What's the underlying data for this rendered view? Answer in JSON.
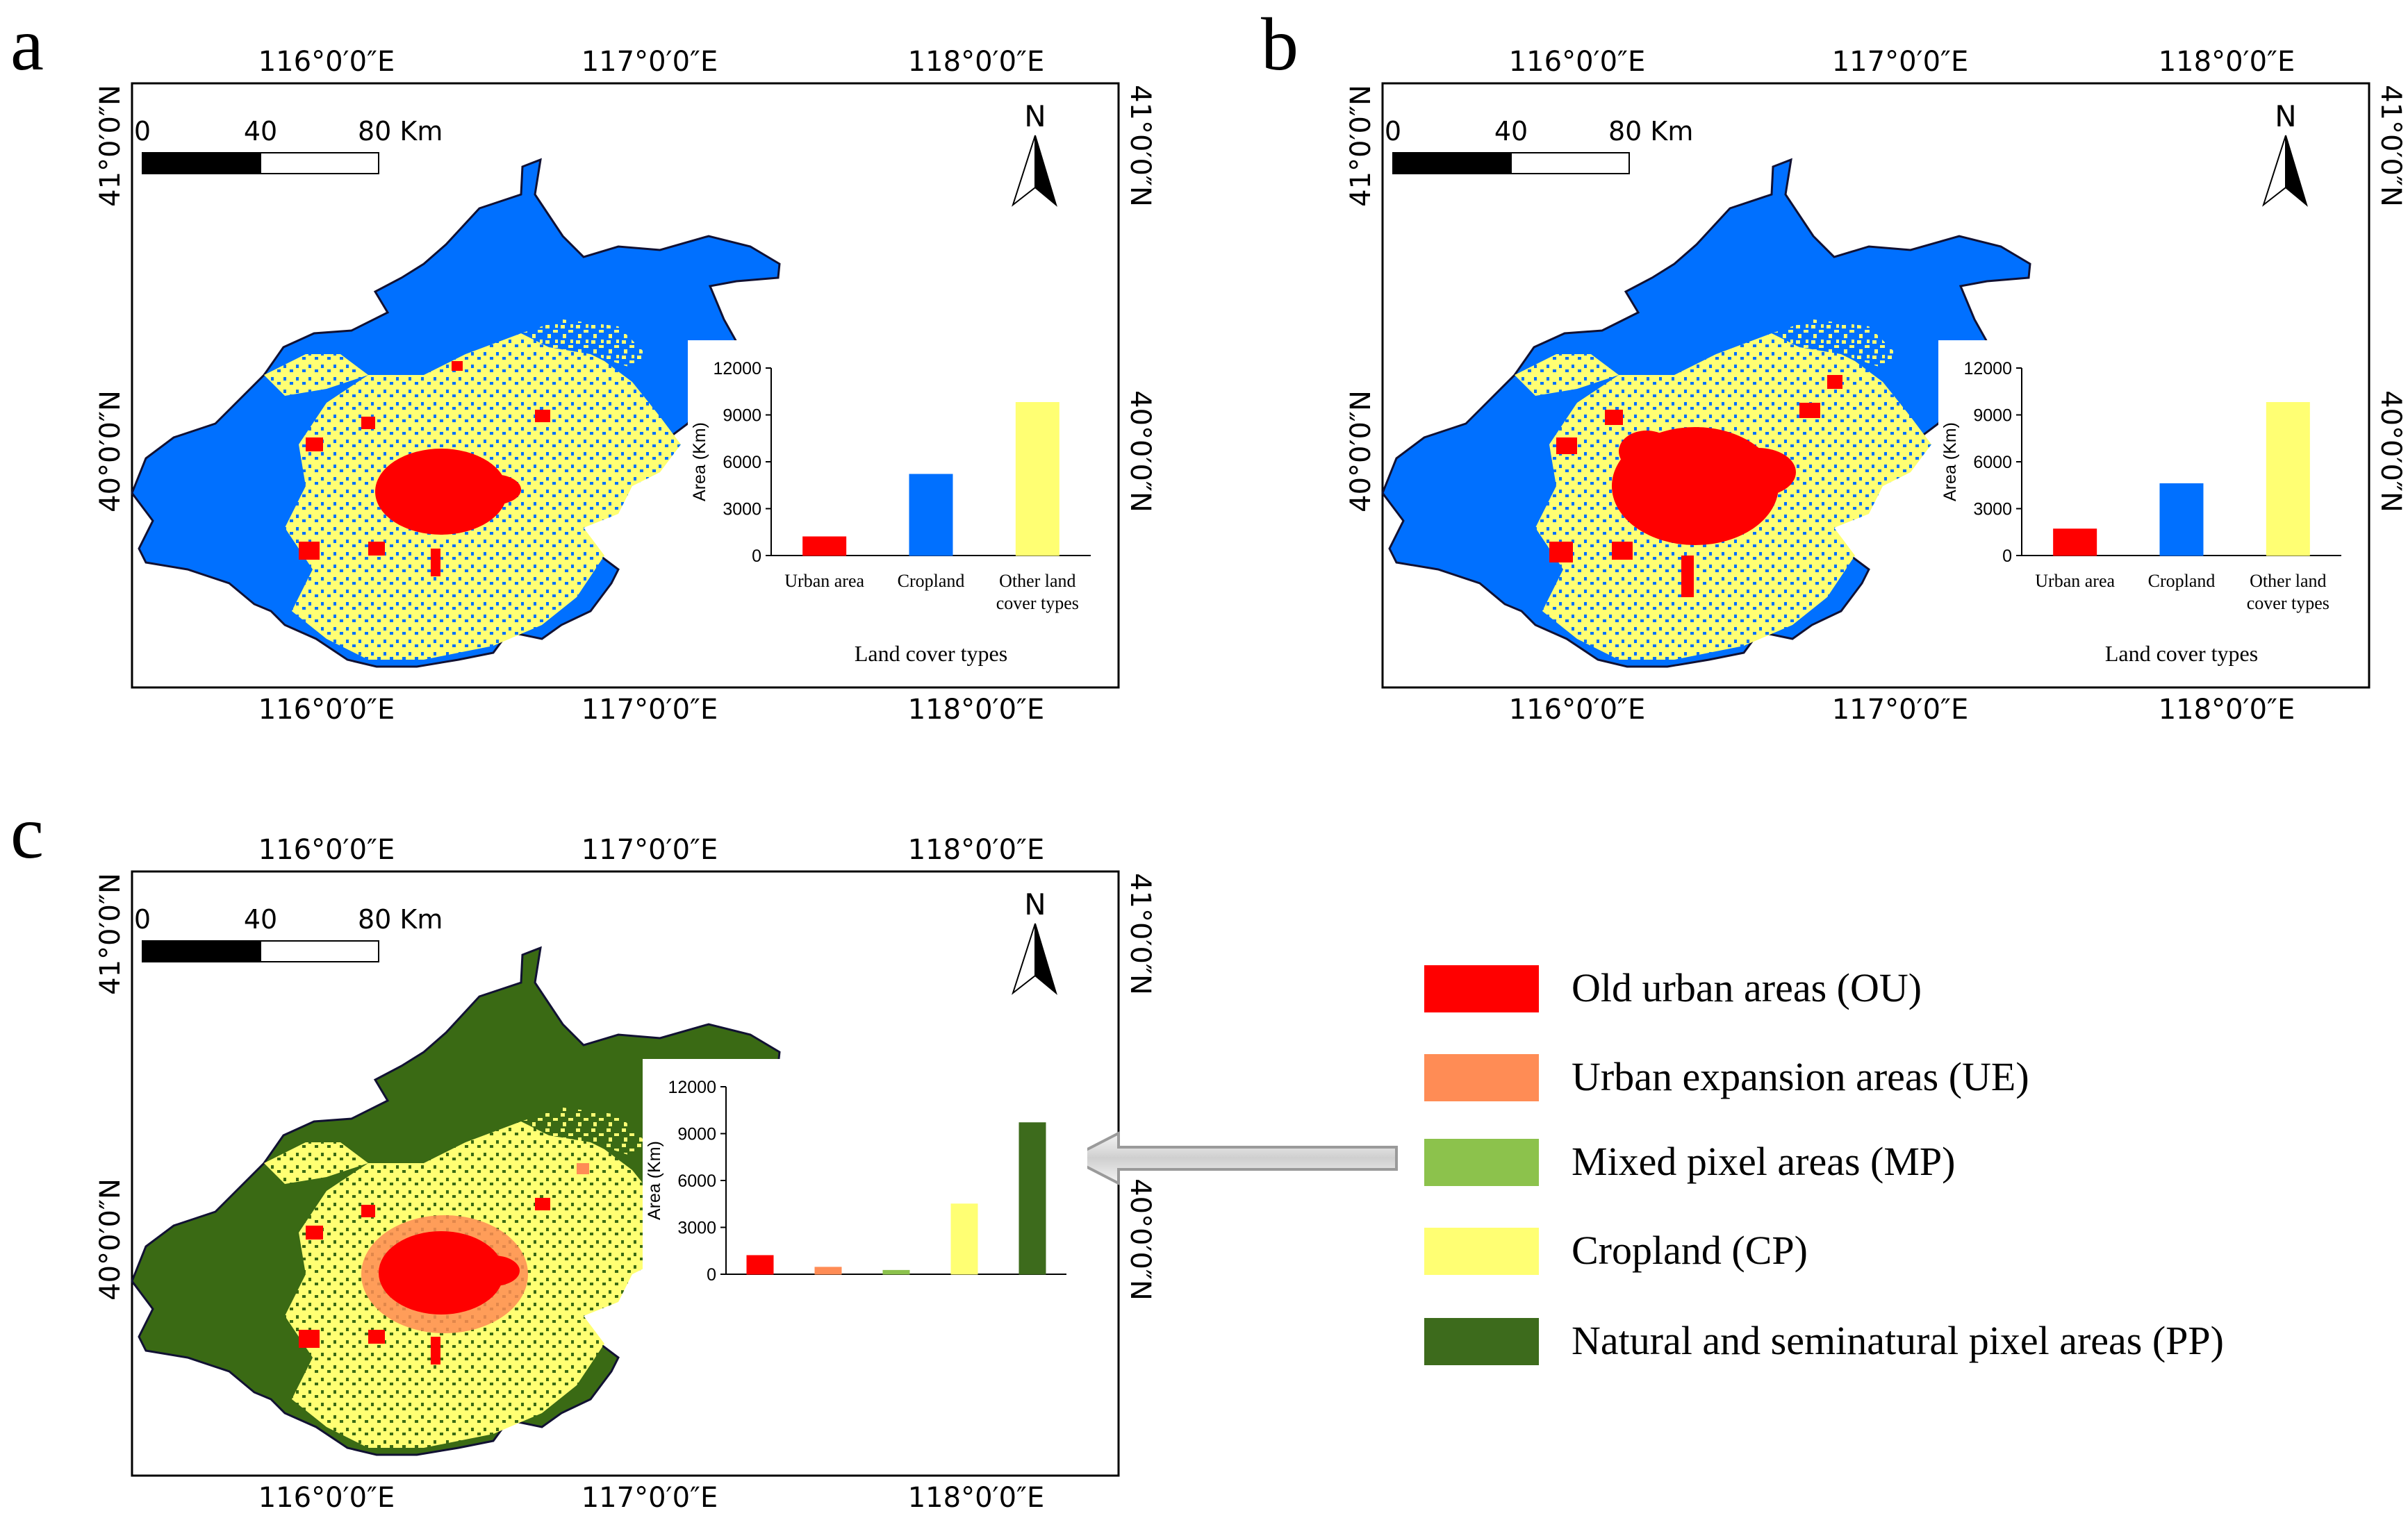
{
  "panels": [
    {
      "letter": "a",
      "top_lon_labels": [
        "116°0′0″E",
        "117°0′0″E",
        "118°0′0″E"
      ],
      "bottom_lon_labels": [
        "116°0′0″E",
        "117°0′0″E",
        "118°0′0″E"
      ],
      "lat_labels": [
        "41°0′0″N",
        "40°0′0″N"
      ],
      "scale": {
        "zero": "0",
        "mid": "40",
        "end": "80 Km"
      },
      "north": "N"
    },
    {
      "letter": "b",
      "top_lon_labels": [
        "116°0′0″E",
        "117°0′0″E",
        "118°0′0″E"
      ],
      "bottom_lon_labels": [
        "116°0′0″E",
        "117°0′0″E",
        "118°0′0″E"
      ],
      "lat_labels": [
        "41°0′0″N",
        "40°0′0″N"
      ],
      "scale": {
        "zero": "0",
        "mid": "40",
        "end": "80 Km"
      },
      "north": "N"
    },
    {
      "letter": "c",
      "top_lon_labels": [
        "116°0′0″E",
        "117°0′0″E",
        "118°0′0″E"
      ],
      "bottom_lon_labels": [
        "116°0′0″E",
        "117°0′0″E",
        "118°0′0″E"
      ],
      "lat_labels": [
        "41°0′0″N",
        "40°0′0″N"
      ],
      "scale": {
        "zero": "0",
        "mid": "40",
        "end": "80 Km"
      },
      "north": "N"
    }
  ],
  "colors": {
    "urban": "#ff0000",
    "cropland_blue": "#0070ff",
    "other": "#ffff73",
    "ue": "#ff8c55",
    "mp": "#8cc24c",
    "cp": "#ffff73",
    "pp": "#3d6b1c",
    "natural_green": "#3a6a14"
  },
  "chart_data": [
    {
      "type": "bar",
      "panel": "a",
      "categories": [
        "Urban area",
        "Cropland",
        "Other land cover types"
      ],
      "category_lines": [
        [
          "Urban area"
        ],
        [
          "Cropland"
        ],
        [
          "Other land",
          "cover types"
        ]
      ],
      "values": [
        1200,
        5200,
        9800
      ],
      "colors": [
        "#ff0000",
        "#0070ff",
        "#ffff73"
      ],
      "ylabel": "Area (Km)",
      "xlabel": "Land cover types",
      "yticks": [
        0,
        3000,
        6000,
        9000,
        12000
      ],
      "ylim": [
        0,
        12000
      ]
    },
    {
      "type": "bar",
      "panel": "b",
      "categories": [
        "Urban area",
        "Cropland",
        "Other land cover types"
      ],
      "category_lines": [
        [
          "Urban area"
        ],
        [
          "Cropland"
        ],
        [
          "Other land",
          "cover types"
        ]
      ],
      "values": [
        1700,
        4600,
        9800
      ],
      "colors": [
        "#ff0000",
        "#0070ff",
        "#ffff73"
      ],
      "ylabel": "Area (Km)",
      "xlabel": "Land cover types",
      "yticks": [
        0,
        3000,
        6000,
        9000,
        12000
      ],
      "ylim": [
        0,
        12000
      ]
    },
    {
      "type": "bar",
      "panel": "c",
      "categories": [
        "OU",
        "UE",
        "MP",
        "CP",
        "PP"
      ],
      "values": [
        1200,
        450,
        250,
        4500,
        9700
      ],
      "colors": [
        "#ff0000",
        "#ff8c55",
        "#8cc24c",
        "#ffff73",
        "#3d6b1c"
      ],
      "ylabel": "Area (Km)",
      "yticks": [
        0,
        3000,
        6000,
        9000,
        12000
      ],
      "ylim": [
        0,
        12000
      ]
    }
  ],
  "legend": [
    {
      "label": "Old urban areas (OU)",
      "color": "#ff0000"
    },
    {
      "label": "Urban expansion areas (UE)",
      "color": "#ff8c55"
    },
    {
      "label": "Mixed pixel areas (MP)",
      "color": "#8cc24c"
    },
    {
      "label": "Cropland (CP)",
      "color": "#ffff73"
    },
    {
      "label": "Natural and seminatural pixel areas (PP)",
      "color": "#3d6b1c"
    }
  ]
}
